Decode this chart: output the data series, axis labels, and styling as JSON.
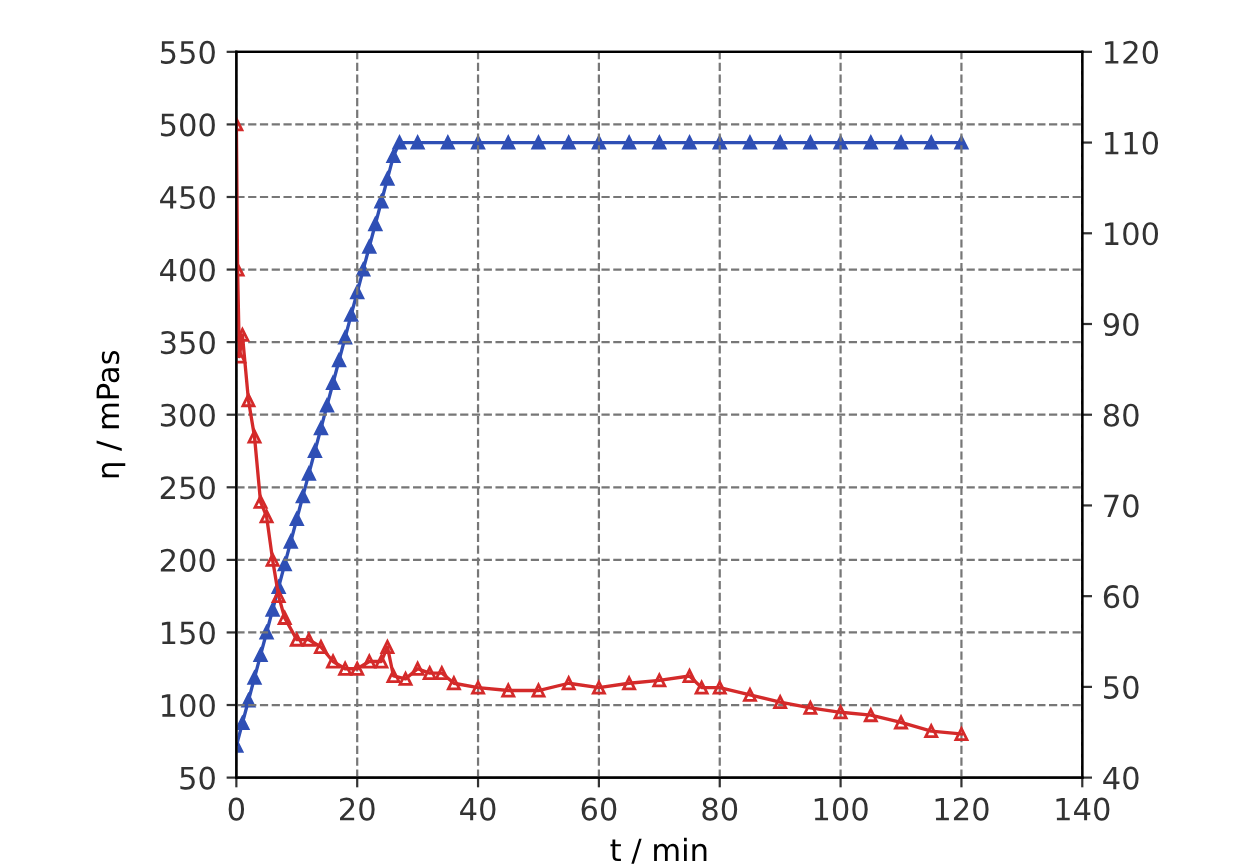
{
  "chart_data": {
    "type": "line",
    "xlabel": "t / min",
    "ylabel": "η / mPas",
    "xlim": [
      0,
      140
    ],
    "xticks": [
      0,
      20,
      40,
      60,
      80,
      100,
      120,
      140
    ],
    "ylim": [
      50,
      550
    ],
    "yticks": [
      50,
      100,
      150,
      200,
      250,
      300,
      350,
      400,
      450,
      500,
      550
    ],
    "y2lim": [
      40,
      120
    ],
    "y2ticks": [
      40,
      50,
      60,
      70,
      80,
      90,
      100,
      110,
      120
    ],
    "grid": true,
    "marker": "triangle",
    "line_style": "solid",
    "legend": false,
    "series": [
      {
        "color": "#2f4fb5",
        "axis": "y2",
        "x": [
          0,
          1,
          2,
          3,
          4,
          5,
          6,
          7,
          8,
          9,
          10,
          11,
          12,
          13,
          14,
          15,
          16,
          17,
          18,
          19,
          20,
          21,
          22,
          23,
          24,
          25,
          26,
          27,
          30,
          35,
          40,
          45,
          50,
          55,
          60,
          65,
          70,
          75,
          80,
          85,
          90,
          95,
          100,
          105,
          110,
          115,
          120
        ],
        "values": [
          43.5,
          46,
          48.5,
          51,
          53.5,
          56,
          58.5,
          61,
          63.5,
          66,
          68.5,
          71,
          73.5,
          76,
          78.5,
          81,
          83.5,
          86,
          88.5,
          91,
          93.5,
          96,
          98.5,
          101,
          103.5,
          106,
          108.5,
          110,
          110,
          110,
          110,
          110,
          110,
          110,
          110,
          110,
          110,
          110,
          110,
          110,
          110,
          110,
          110,
          110,
          110,
          110,
          110
        ]
      },
      {
        "color": "#d42a2a",
        "x": [
          0,
          0.2,
          0.5,
          1,
          2,
          3,
          4,
          5,
          6,
          7,
          8,
          10,
          12,
          14,
          16,
          18,
          20,
          22,
          24,
          25,
          26,
          28,
          30,
          32,
          34,
          36,
          40,
          45,
          50,
          55,
          60,
          65,
          70,
          75,
          77,
          80,
          85,
          90,
          95,
          100,
          105,
          110,
          115,
          120
        ],
        "values": [
          500,
          400,
          340,
          355,
          310,
          285,
          240,
          230,
          200,
          175,
          160,
          145,
          145,
          140,
          130,
          125,
          125,
          130,
          130,
          140,
          120,
          118,
          125,
          122,
          122,
          115,
          112,
          110,
          110,
          115,
          112,
          115,
          117,
          120,
          112,
          112,
          107,
          102,
          98,
          95,
          93,
          88,
          82,
          80
        ]
      }
    ]
  }
}
